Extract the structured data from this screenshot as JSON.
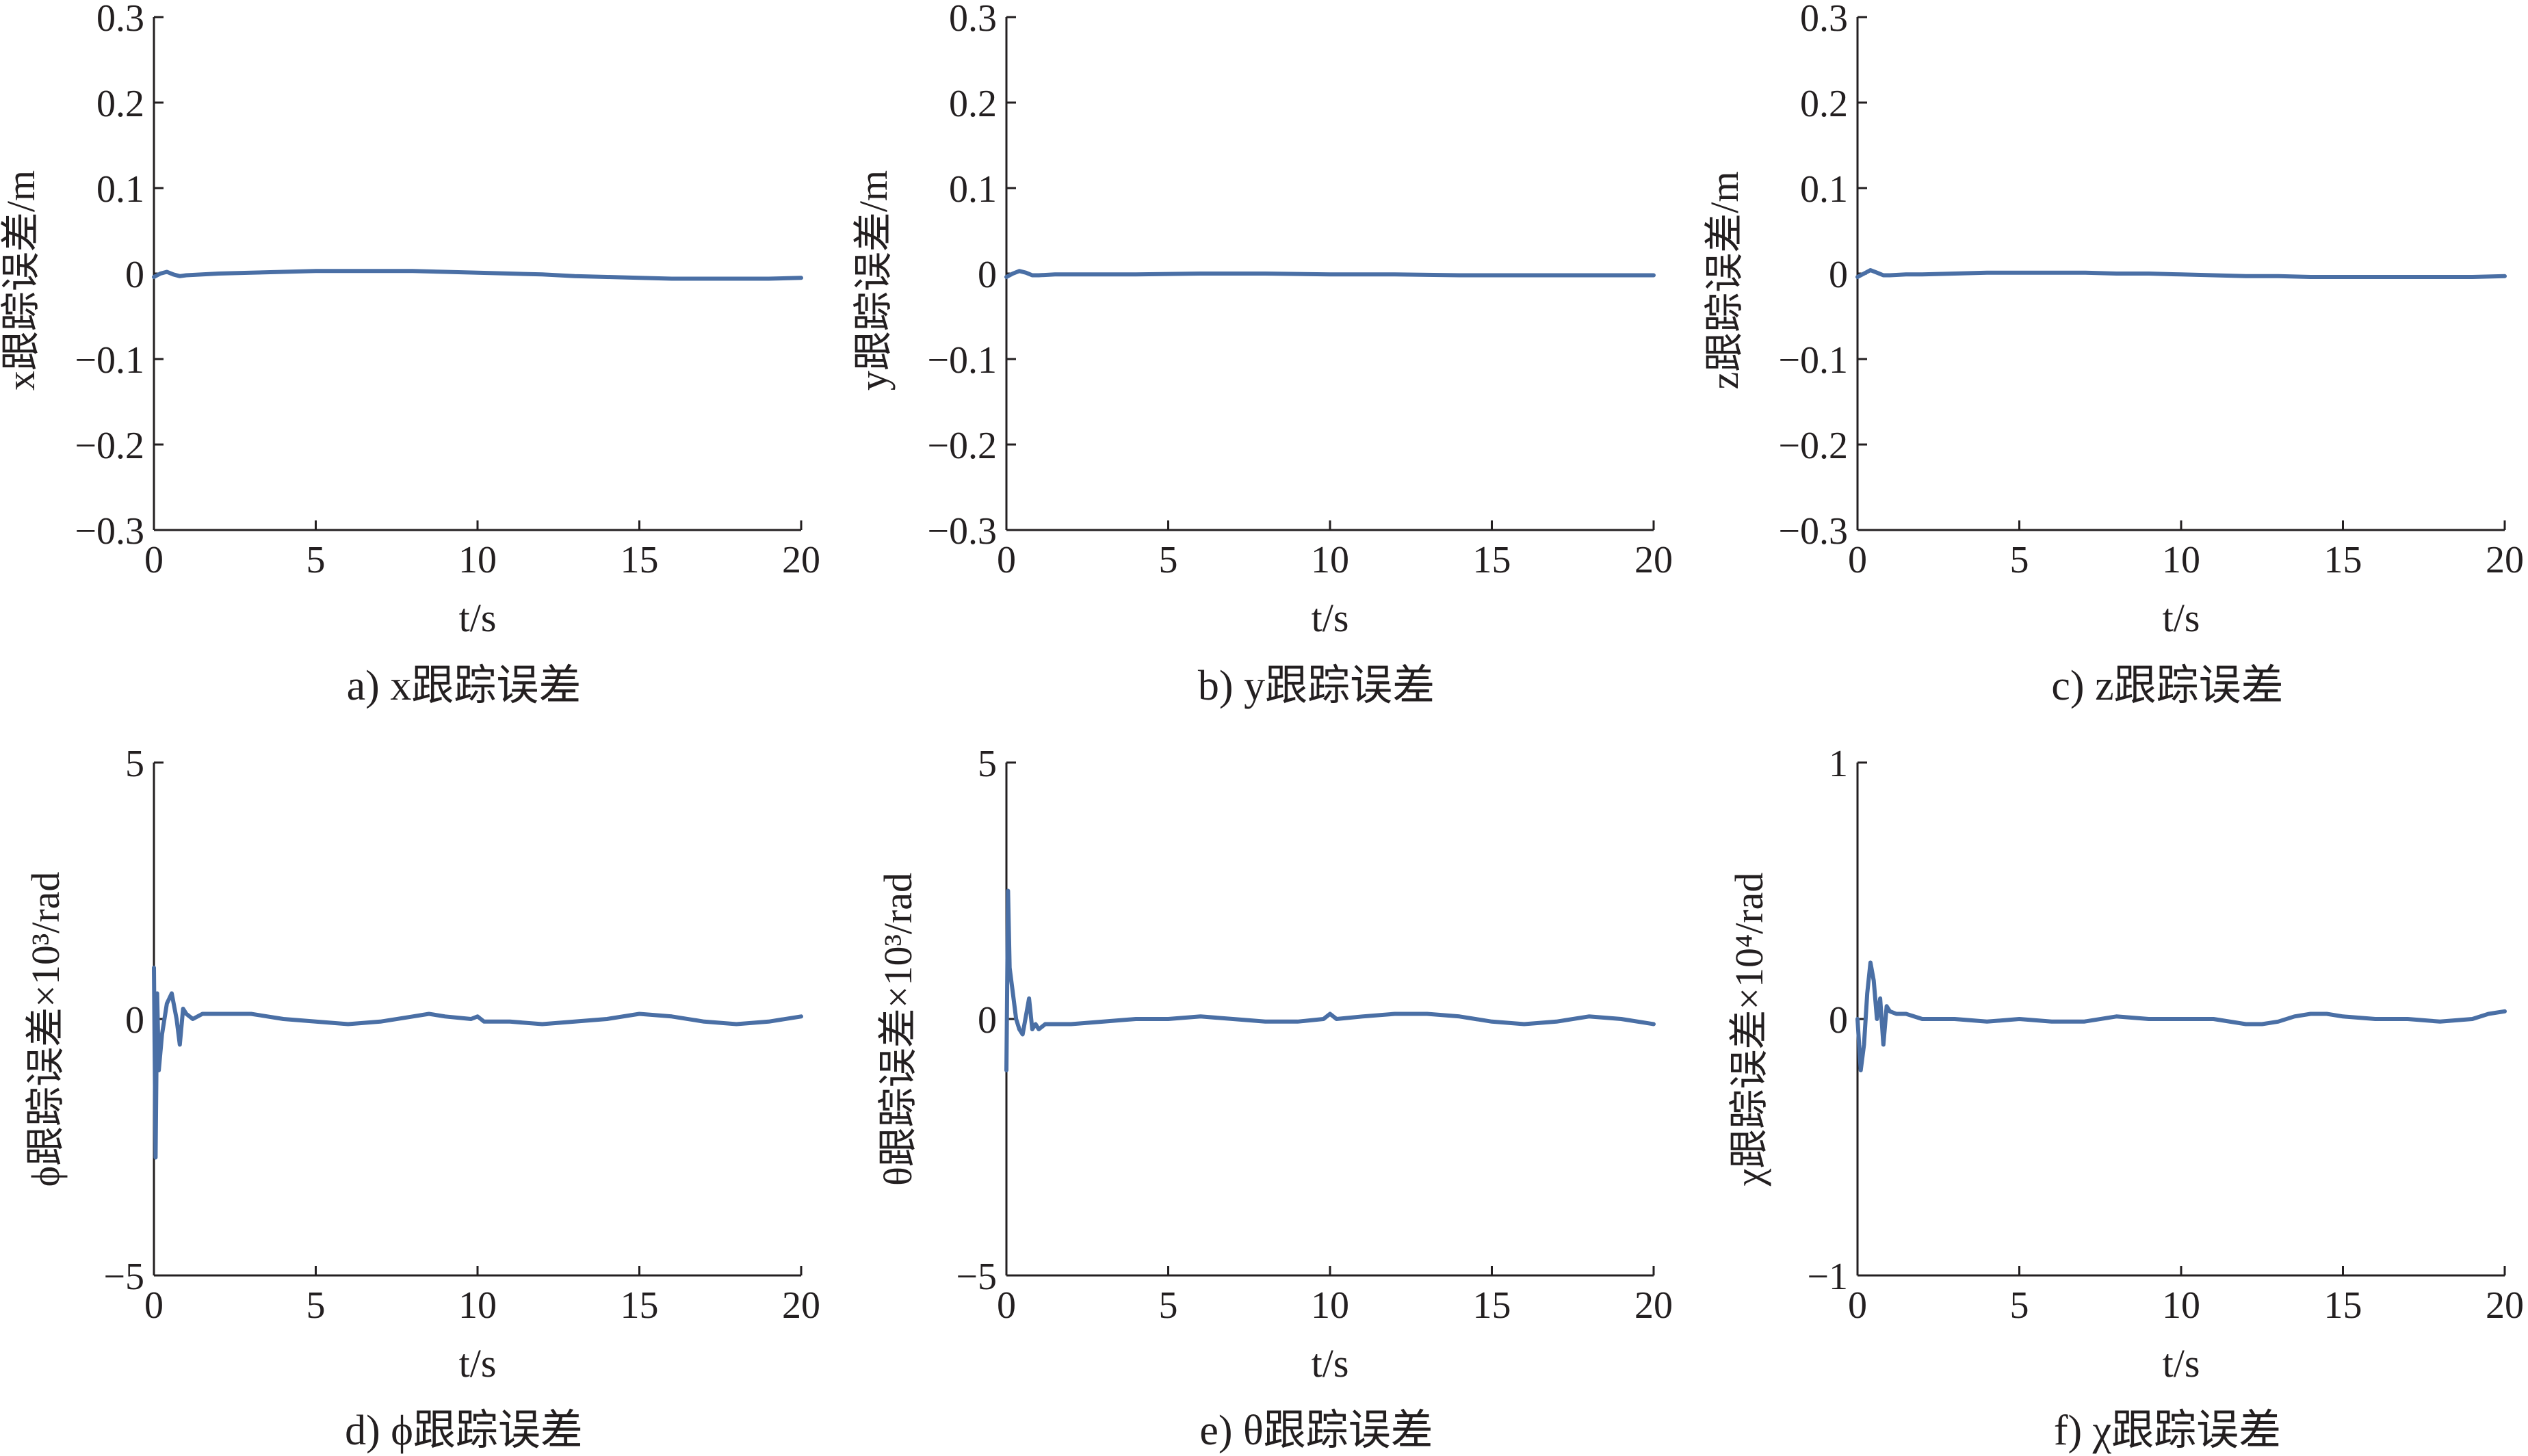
{
  "chart_data": [
    {
      "type": "line",
      "caption": "a) x跟踪误差",
      "ylabel": "x跟踪误差/m",
      "xlabel": "t/s",
      "xlim": [
        0,
        20
      ],
      "ylim": [
        -0.3,
        0.3
      ],
      "xticks": [
        "0",
        "5",
        "10",
        "15",
        "20"
      ],
      "yticks": [
        "0.3",
        "0.2",
        "0.1",
        "0",
        "−0.1",
        "−0.2",
        "−0.3"
      ],
      "series": [
        {
          "color": "#4a6fa5",
          "x": [
            0,
            0.2,
            0.4,
            0.6,
            0.8,
            1,
            1.5,
            2,
            3,
            4,
            5,
            6,
            7,
            8,
            9,
            10,
            11,
            12,
            13,
            14,
            15,
            16,
            17,
            18,
            19,
            20
          ],
          "y": [
            -0.004,
            0.0,
            0.002,
            -0.001,
            -0.003,
            -0.002,
            -0.001,
            0.0,
            0.001,
            0.002,
            0.003,
            0.003,
            0.003,
            0.003,
            0.002,
            0.001,
            0.0,
            -0.001,
            -0.003,
            -0.004,
            -0.005,
            -0.006,
            -0.006,
            -0.006,
            -0.006,
            -0.005
          ]
        }
      ]
    },
    {
      "type": "line",
      "caption": "b) y跟踪误差",
      "ylabel": "y跟踪误差/m",
      "xlabel": "t/s",
      "xlim": [
        0,
        20
      ],
      "ylim": [
        -0.3,
        0.3
      ],
      "xticks": [
        "0",
        "5",
        "10",
        "15",
        "20"
      ],
      "yticks": [
        "0.3",
        "0.2",
        "0.1",
        "0",
        "−0.1",
        "−0.2",
        "−0.3"
      ],
      "series": [
        {
          "color": "#4a6fa5",
          "x": [
            0,
            0.2,
            0.4,
            0.6,
            0.8,
            1,
            1.5,
            2,
            4,
            6,
            8,
            10,
            12,
            14,
            16,
            18,
            20
          ],
          "y": [
            -0.004,
            0.0,
            0.003,
            0.001,
            -0.002,
            -0.002,
            -0.001,
            -0.001,
            -0.001,
            0.0,
            0.0,
            -0.001,
            -0.001,
            -0.002,
            -0.002,
            -0.002,
            -0.002
          ]
        }
      ]
    },
    {
      "type": "line",
      "caption": "c) z跟踪误差",
      "ylabel": "z跟踪误差/m",
      "xlabel": "t/s",
      "xlim": [
        0,
        20
      ],
      "ylim": [
        -0.3,
        0.3
      ],
      "xticks": [
        "0",
        "5",
        "10",
        "15",
        "20"
      ],
      "yticks": [
        "0.3",
        "0.2",
        "0.1",
        "0",
        "−0.1",
        "−0.2",
        "−0.3"
      ],
      "series": [
        {
          "color": "#4a6fa5",
          "x": [
            0,
            0.2,
            0.4,
            0.6,
            0.8,
            1,
            1.5,
            2,
            3,
            4,
            5,
            6,
            7,
            8,
            9,
            10,
            11,
            12,
            13,
            14,
            15,
            16,
            17,
            18,
            19,
            20
          ],
          "y": [
            -0.004,
            0.0,
            0.004,
            0.001,
            -0.002,
            -0.002,
            -0.001,
            -0.001,
            0.0,
            0.001,
            0.001,
            0.001,
            0.001,
            0.0,
            0.0,
            -0.001,
            -0.002,
            -0.003,
            -0.003,
            -0.004,
            -0.004,
            -0.004,
            -0.004,
            -0.004,
            -0.004,
            -0.003
          ]
        }
      ]
    },
    {
      "type": "line",
      "caption": "d) ϕ跟踪误差",
      "ylabel": "ϕ跟踪误差×10³/rad",
      "xlabel": "t/s",
      "xlim": [
        0,
        20
      ],
      "ylim": [
        -5,
        5
      ],
      "xticks": [
        "0",
        "5",
        "10",
        "15",
        "20"
      ],
      "yticks": [
        "5",
        "0",
        "−5"
      ],
      "series": [
        {
          "color": "#4a6fa5",
          "x": [
            0,
            0.05,
            0.1,
            0.15,
            0.25,
            0.4,
            0.55,
            0.7,
            0.8,
            0.9,
            1.0,
            1.2,
            1.5,
            2,
            3,
            4,
            5,
            6,
            7,
            8,
            8.5,
            9,
            9.8,
            10,
            10.2,
            11,
            12,
            13,
            14,
            15,
            16,
            17,
            18,
            19,
            20
          ],
          "y": [
            1.0,
            -2.7,
            0.5,
            -1.0,
            -0.3,
            0.3,
            0.5,
            0.0,
            -0.5,
            0.2,
            0.1,
            0.0,
            0.1,
            0.1,
            0.1,
            0.0,
            -0.05,
            -0.1,
            -0.05,
            0.05,
            0.1,
            0.05,
            0.0,
            0.05,
            -0.05,
            -0.05,
            -0.1,
            -0.05,
            0.0,
            0.1,
            0.05,
            -0.05,
            -0.1,
            -0.05,
            0.05
          ]
        }
      ]
    },
    {
      "type": "line",
      "caption": "e) θ跟踪误差",
      "ylabel": "θ跟踪误差×10³/rad",
      "xlabel": "t/s",
      "xlim": [
        0,
        20
      ],
      "ylim": [
        -5,
        5
      ],
      "xticks": [
        "0",
        "5",
        "10",
        "15",
        "20"
      ],
      "yticks": [
        "5",
        "0",
        "−5"
      ],
      "series": [
        {
          "color": "#4a6fa5",
          "x": [
            0,
            0.05,
            0.1,
            0.2,
            0.3,
            0.4,
            0.5,
            0.7,
            0.8,
            0.9,
            1.0,
            1.2,
            1.5,
            2,
            3,
            4,
            5,
            6,
            7,
            8,
            9,
            9.8,
            10,
            10.2,
            11,
            12,
            13,
            14,
            15,
            16,
            17,
            18,
            19,
            20
          ],
          "y": [
            -1.0,
            2.5,
            1.0,
            0.5,
            0.0,
            -0.2,
            -0.3,
            0.4,
            -0.2,
            -0.1,
            -0.2,
            -0.1,
            -0.1,
            -0.1,
            -0.05,
            0.0,
            0.0,
            0.05,
            0.0,
            -0.05,
            -0.05,
            0.0,
            0.1,
            0.0,
            0.05,
            0.1,
            0.1,
            0.05,
            -0.05,
            -0.1,
            -0.05,
            0.05,
            0.0,
            -0.1
          ]
        }
      ]
    },
    {
      "type": "line",
      "caption": "f) χ跟踪误差",
      "ylabel": "χ跟踪误差×10⁴/rad",
      "xlabel": "t/s",
      "xlim": [
        0,
        20
      ],
      "ylim": [
        -1,
        1
      ],
      "xticks": [
        "0",
        "5",
        "10",
        "15",
        "20"
      ],
      "yticks": [
        "1",
        "0",
        "−1"
      ],
      "series": [
        {
          "color": "#4a6fa5",
          "x": [
            0,
            0.1,
            0.2,
            0.3,
            0.4,
            0.5,
            0.6,
            0.7,
            0.8,
            0.9,
            1.0,
            1.2,
            1.5,
            2,
            3,
            4,
            5,
            6,
            7,
            8,
            9,
            10,
            11,
            12,
            12.5,
            13,
            13.5,
            14,
            14.5,
            15,
            16,
            17,
            18,
            19,
            19.5,
            20
          ],
          "y": [
            0.0,
            -0.2,
            -0.1,
            0.1,
            0.22,
            0.15,
            0.0,
            0.08,
            -0.1,
            0.05,
            0.03,
            0.02,
            0.02,
            0.0,
            0.0,
            -0.01,
            0.0,
            -0.01,
            -0.01,
            0.01,
            0.0,
            0.0,
            0.0,
            -0.02,
            -0.02,
            -0.01,
            0.01,
            0.02,
            0.02,
            0.01,
            0.0,
            0.0,
            -0.01,
            0.0,
            0.02,
            0.03
          ]
        }
      ]
    }
  ]
}
